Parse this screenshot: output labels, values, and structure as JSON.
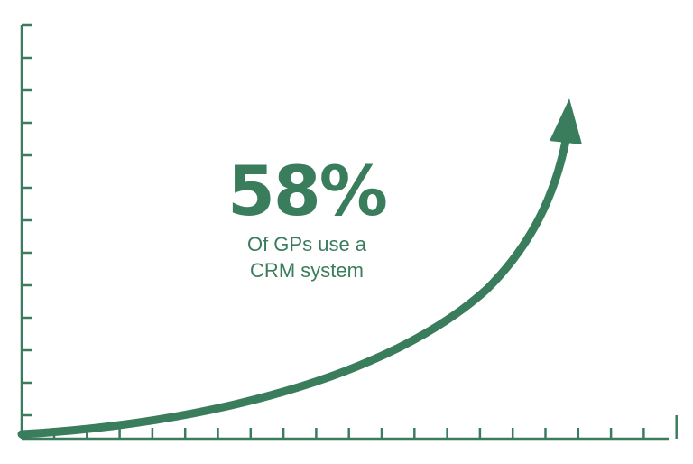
{
  "infographic": {
    "stat_value": "58%",
    "caption_line_1": "Of GPs use a",
    "caption_line_2": "CRM system"
  },
  "colors": {
    "accent": "#3a7d5d"
  }
}
